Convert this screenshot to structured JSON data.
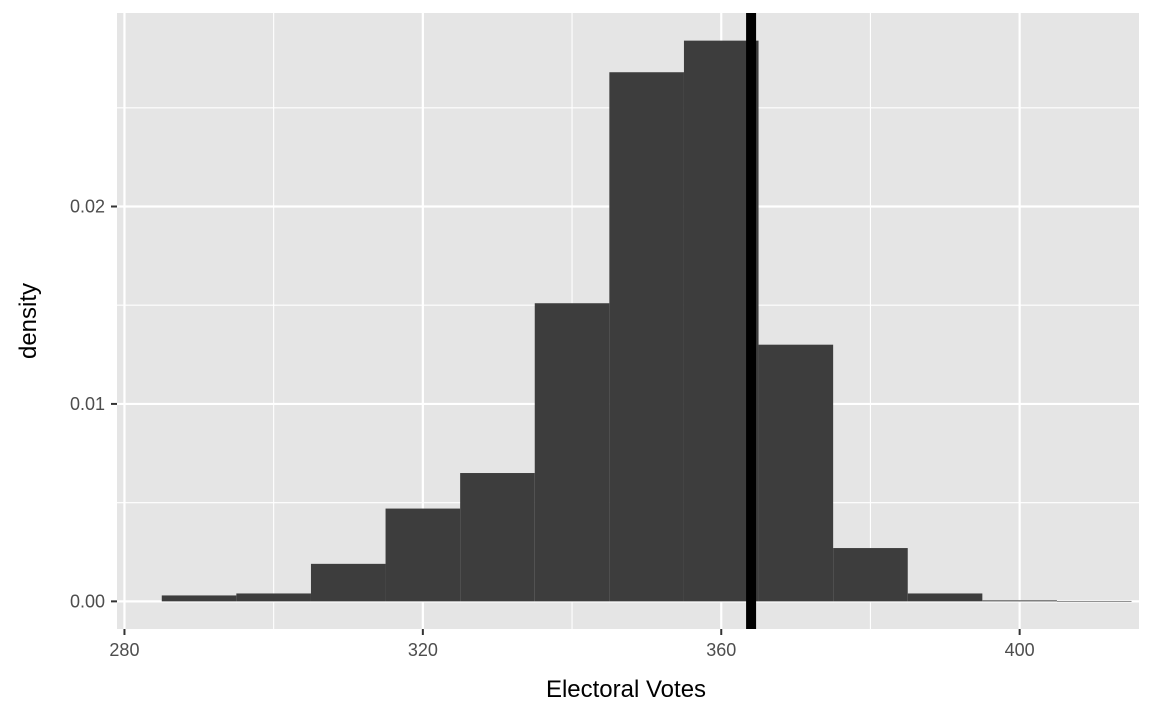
{
  "chart_data": {
    "type": "bar",
    "subtype": "histogram",
    "xlabel": "Electoral Votes",
    "ylabel": "density",
    "xlim": [
      279,
      416
    ],
    "ylim": [
      -0.0014,
      0.0298
    ],
    "xticks": [
      280,
      320,
      360,
      400
    ],
    "xtick_labels": [
      "280",
      "320",
      "360",
      "400"
    ],
    "yticks": [
      0.0,
      0.01,
      0.02
    ],
    "ytick_labels": [
      "0.00",
      "0.01",
      "0.02"
    ],
    "bin_width": 10,
    "bins": [
      {
        "x0": 285,
        "x1": 295,
        "density": 0.0003
      },
      {
        "x0": 295,
        "x1": 305,
        "density": 0.0004
      },
      {
        "x0": 305,
        "x1": 315,
        "density": 0.0019
      },
      {
        "x0": 315,
        "x1": 325,
        "density": 0.0047
      },
      {
        "x0": 325,
        "x1": 335,
        "density": 0.0065
      },
      {
        "x0": 335,
        "x1": 345,
        "density": 0.0151
      },
      {
        "x0": 345,
        "x1": 355,
        "density": 0.0268
      },
      {
        "x0": 355,
        "x1": 365,
        "density": 0.0284
      },
      {
        "x0": 365,
        "x1": 375,
        "density": 0.013
      },
      {
        "x0": 375,
        "x1": 385,
        "density": 0.0027
      },
      {
        "x0": 385,
        "x1": 395,
        "density": 0.0004
      },
      {
        "x0": 395,
        "x1": 405,
        "density": 5e-05
      },
      {
        "x0": 405,
        "x1": 415,
        "density": 2e-05
      }
    ],
    "vline": {
      "x": 364
    },
    "grid": true,
    "colors": {
      "panel_background": "#e5e5e5",
      "grid": "#ffffff",
      "bar_fill": "#3d3d3d",
      "vline": "#000000",
      "axis_tick": "#333333"
    }
  }
}
